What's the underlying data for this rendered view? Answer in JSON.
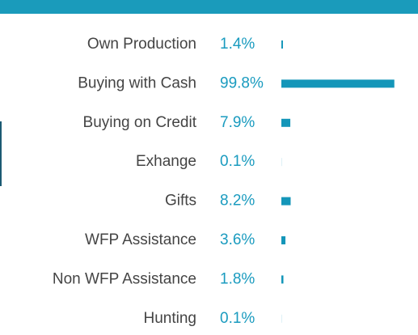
{
  "chart_data": {
    "type": "hbar",
    "categories": [
      "Own Production",
      "Buying with Cash",
      "Buying on Credit",
      "Exhange",
      "Gifts",
      "WFP Assistance",
      "Non WFP Assistance",
      "Hunting"
    ],
    "values": [
      1.4,
      99.8,
      7.9,
      0.1,
      8.2,
      3.6,
      1.8,
      0.1
    ],
    "value_labels": [
      "1.4%",
      "99.8%",
      "7.9%",
      "0.1%",
      "8.2%",
      "3.6%",
      "1.8%",
      "0.1%"
    ],
    "color": "#1496b9"
  }
}
